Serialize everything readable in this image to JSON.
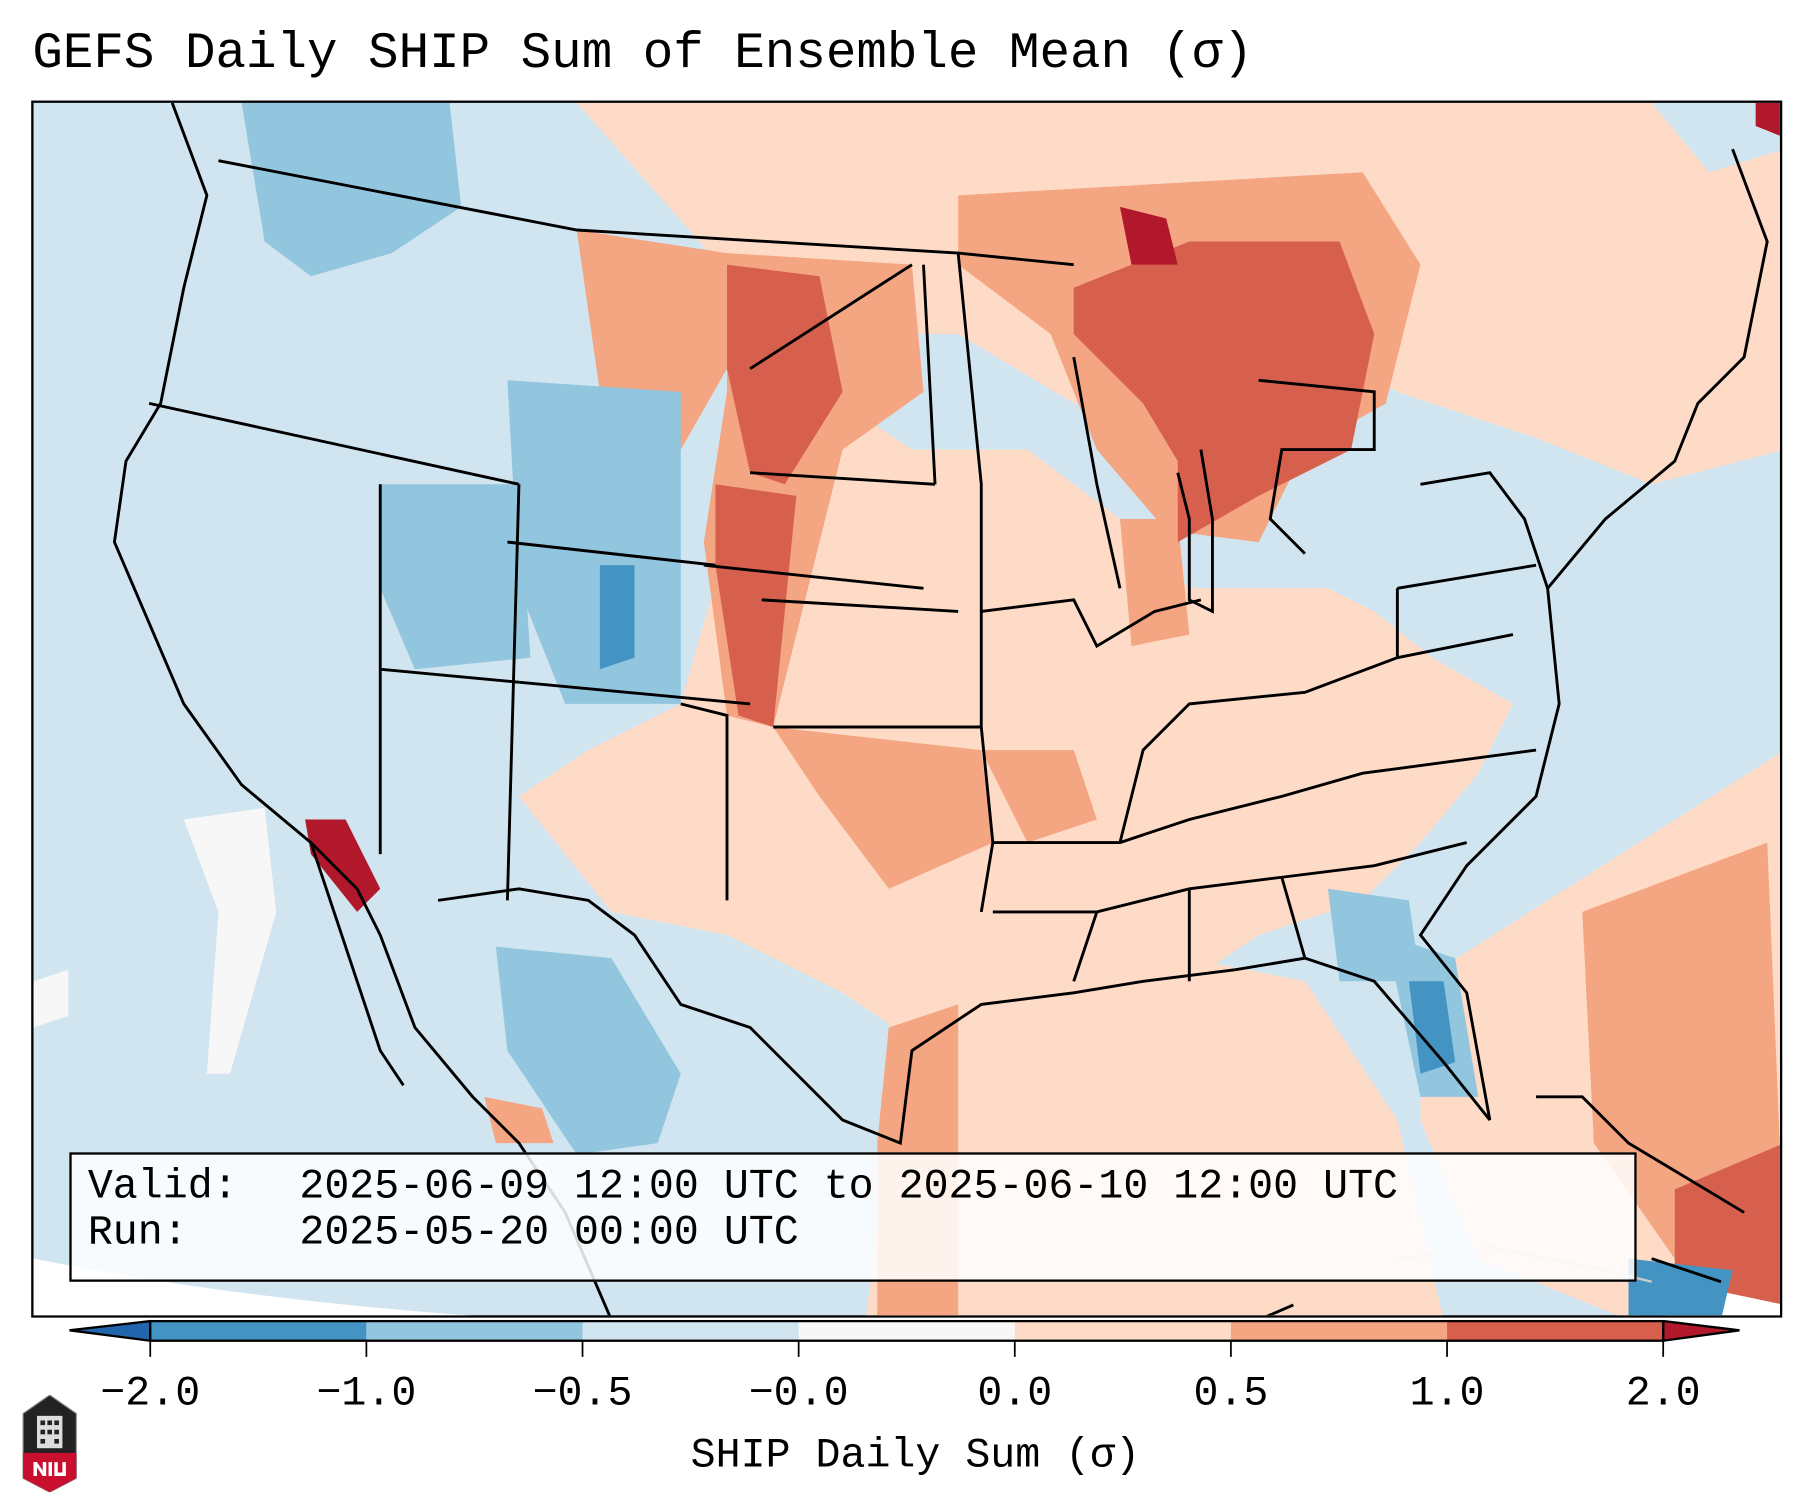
{
  "title": "GEFS Daily SHIP Sum of Ensemble Mean (σ)",
  "info": {
    "valid_label": "Valid:",
    "valid_value": "2025-06-09 12:00 UTC to 2025-06-10 12:00 UTC",
    "run_label": "Run:",
    "run_value": "2025-05-20 00:00 UTC"
  },
  "colorbar": {
    "label": "SHIP Daily Sum (σ)",
    "ticks": [
      "−2.0",
      "−1.0",
      "−0.5",
      "−0.0",
      "0.0",
      "0.5",
      "1.0",
      "2.0"
    ],
    "colors": [
      "#2166ac",
      "#4393c3",
      "#92c5de",
      "#d1e5f0",
      "#f7f7f7",
      "#fddbc7",
      "#f4a582",
      "#d6604d",
      "#b2182b"
    ],
    "extend": "both"
  },
  "logo": {
    "text": "NIU"
  }
}
